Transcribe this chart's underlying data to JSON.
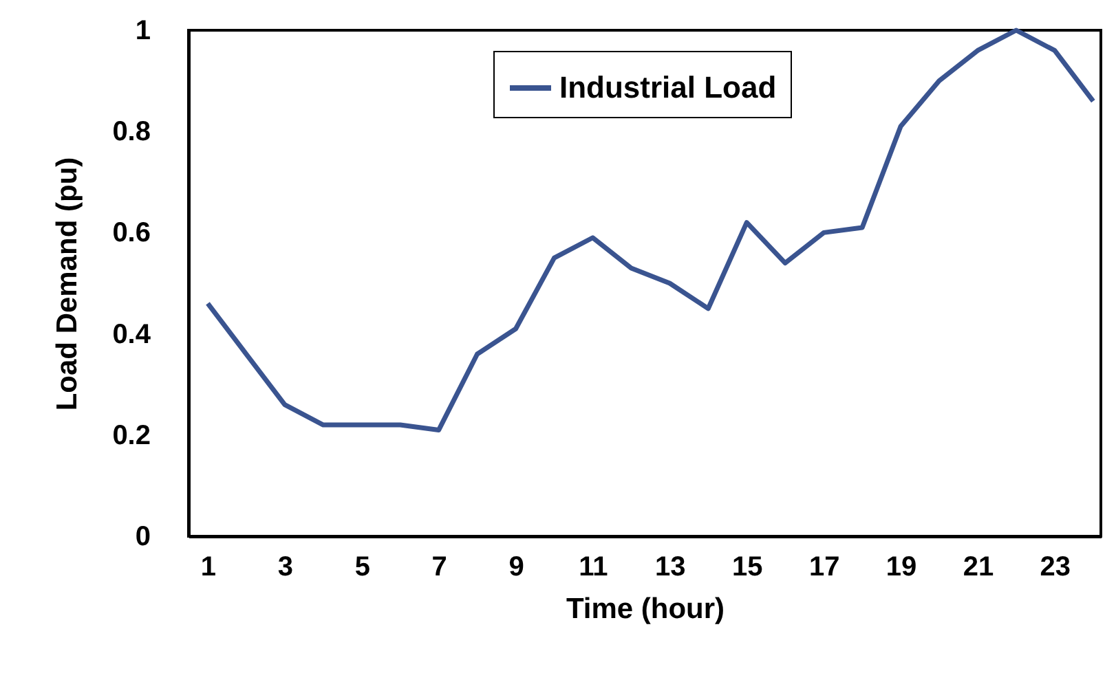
{
  "chart_data": {
    "type": "line",
    "xlabel": "Time (hour)",
    "ylabel": "Load Demand (pu)",
    "x": [
      1,
      2,
      3,
      4,
      5,
      6,
      7,
      8,
      9,
      10,
      11,
      12,
      13,
      14,
      15,
      16,
      17,
      18,
      19,
      20,
      21,
      22,
      23,
      24
    ],
    "series": [
      {
        "name": "Industrial Load",
        "color": "#3a5490",
        "values": [
          0.46,
          0.36,
          0.26,
          0.22,
          0.22,
          0.22,
          0.21,
          0.36,
          0.41,
          0.55,
          0.59,
          0.53,
          0.5,
          0.45,
          0.62,
          0.54,
          0.6,
          0.61,
          0.81,
          0.9,
          0.96,
          1.0,
          0.96,
          0.86
        ]
      }
    ],
    "xlim": [
      0.5,
      24.2
    ],
    "xticks": [
      1,
      3,
      5,
      7,
      9,
      11,
      13,
      15,
      17,
      19,
      21,
      23
    ],
    "ylim": [
      0,
      1
    ],
    "yticks": [
      0,
      0.2,
      0.4,
      0.6,
      0.8,
      1
    ],
    "grid": false,
    "legend": "top",
    "marker": "none",
    "line_style": "solid"
  }
}
